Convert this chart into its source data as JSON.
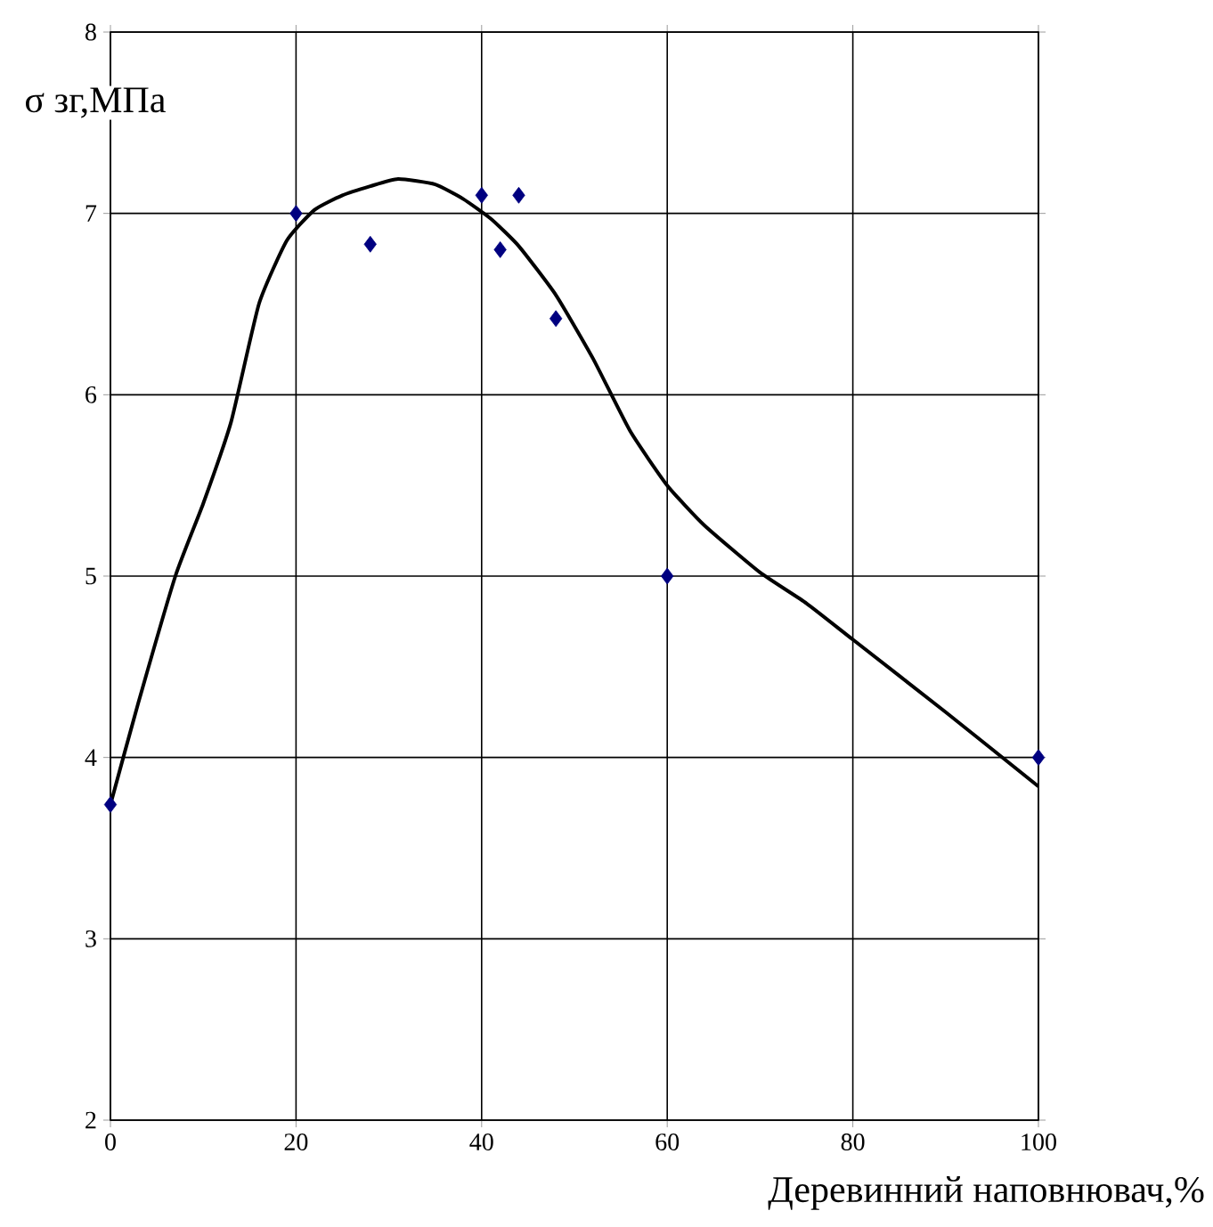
{
  "chart_data": {
    "type": "scatter",
    "xlabel": "Деревинний наповнювач,%",
    "ylabel": "σ зг,МПа",
    "xlim": [
      0,
      100
    ],
    "ylim": [
      2,
      8
    ],
    "xticks": [
      0,
      20,
      40,
      60,
      80,
      100
    ],
    "yticks": [
      2,
      3,
      4,
      5,
      6,
      7,
      8
    ],
    "grid": true,
    "series": [
      {
        "marker": "diamond",
        "color": "#000080",
        "x": [
          0,
          20,
          28,
          40,
          42,
          44,
          48,
          60,
          100
        ],
        "values": [
          3.74,
          7.0,
          6.83,
          7.1,
          6.8,
          7.1,
          6.42,
          5.0,
          4.0
        ]
      },
      {
        "type": "line",
        "marker": "none",
        "line_style": "solid",
        "color": "#000000",
        "x": [
          0,
          3,
          7,
          10,
          13,
          16,
          19,
          22,
          25,
          28,
          31,
          35,
          38,
          41,
          44,
          48,
          52,
          56,
          60,
          64,
          70,
          75,
          80,
          90,
          100
        ],
        "values": [
          3.74,
          4.3,
          5.0,
          5.4,
          5.85,
          6.5,
          6.85,
          7.02,
          7.1,
          7.15,
          7.19,
          7.16,
          7.08,
          6.97,
          6.82,
          6.55,
          6.2,
          5.8,
          5.5,
          5.28,
          5.02,
          4.85,
          4.65,
          4.25,
          3.84
        ]
      }
    ]
  }
}
